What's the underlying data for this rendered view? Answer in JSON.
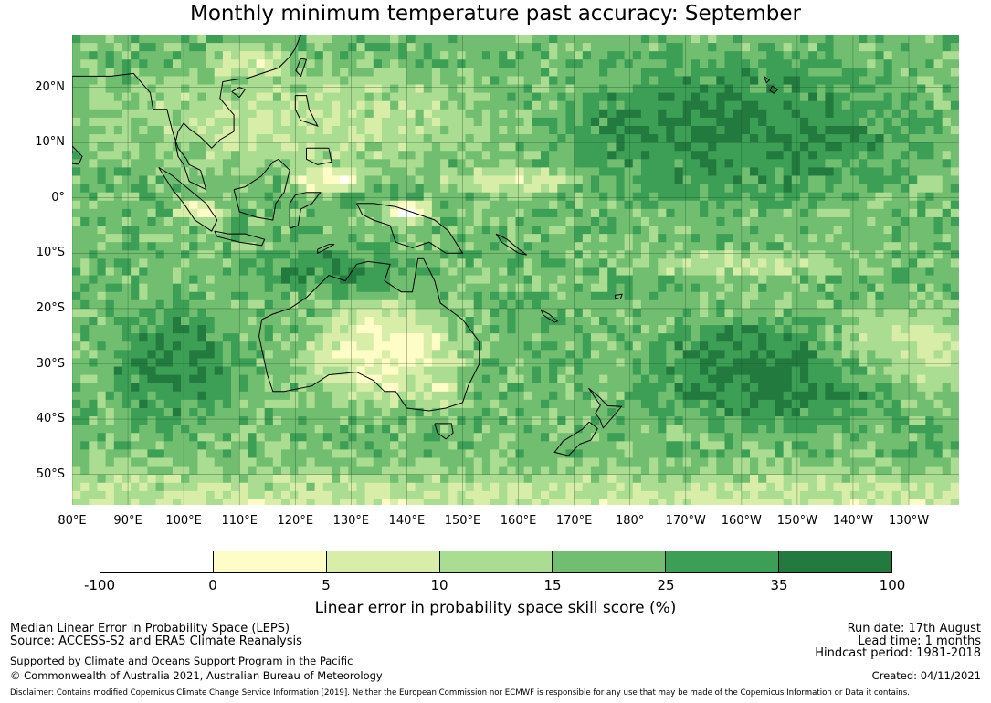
{
  "title": "Monthly minimum temperature past accuracy: September",
  "map": {
    "lat_labels": [
      "20°N",
      "10°N",
      "0°",
      "10°S",
      "20°S",
      "30°S",
      "40°S",
      "50°S"
    ],
    "lon_labels": [
      "80°E",
      "90°E",
      "100°E",
      "110°E",
      "120°E",
      "130°E",
      "140°E",
      "150°E",
      "160°E",
      "170°E",
      "180°",
      "170°W",
      "160°W",
      "150°W",
      "140°W",
      "130°W"
    ],
    "extent": {
      "lon_min": 80,
      "lon_max": 239,
      "lat_min": -55.5,
      "lat_max": 29.5
    },
    "gridlines": true,
    "land_palette": [
      "#237a3e",
      "#3c9f55",
      "#71be71",
      "#aadc91",
      "#d8eea8",
      "#fffdc7",
      "#ffffff"
    ]
  },
  "colorbar": {
    "ticks": [
      "-100",
      "0",
      "5",
      "10",
      "15",
      "25",
      "35",
      "100"
    ],
    "colors": [
      "#ffffff",
      "#fffdc7",
      "#d8eea8",
      "#aadc91",
      "#71be71",
      "#3c9f55",
      "#237a3e"
    ],
    "label": "Linear error in probability space skill score (%)"
  },
  "footer": {
    "left": [
      "Median Linear Error in Probability Space (LEPS)",
      "Source: ACCESS-S2 and ERA5 Climate Reanalysis",
      "Supported by Climate and Oceans Support Program in the Pacific",
      "© Commonwealth of Australia 2021, Australian Bureau of Meteorology"
    ],
    "right": [
      "Run date: 17th August",
      "Lead time: 1 months",
      "Hindcast period: 1981-2018",
      "Created: 04/11/2021"
    ],
    "disclaimer": "Disclaimer: Contains modified Copernicus Climate Change Service Information [2019]. Neither the European Commission nor ECMWF is responsible for any use that may be made of the Copernicus Information or Data it contains."
  }
}
